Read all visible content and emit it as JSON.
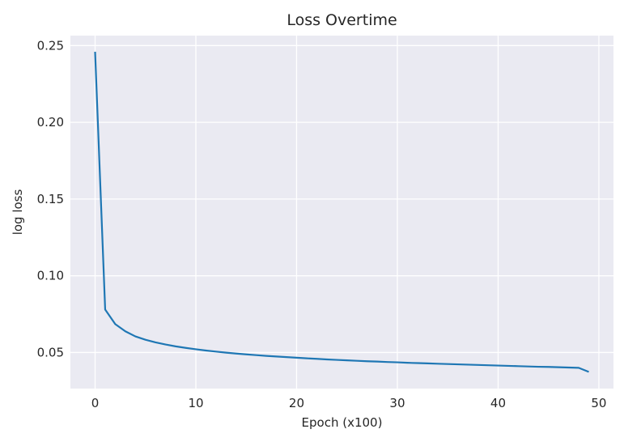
{
  "chart_data": {
    "type": "line",
    "title": "Loss Overtime",
    "xlabel": "Epoch (x100)",
    "ylabel": "log loss",
    "xlim": [
      -2.45,
      51.45
    ],
    "ylim": [
      0.0265,
      0.2565
    ],
    "xticks": [
      0,
      10,
      20,
      30,
      40,
      50
    ],
    "yticks": [
      0.05,
      0.1,
      0.15,
      0.2,
      0.25
    ],
    "xtick_labels": [
      "0",
      "10",
      "20",
      "30",
      "40",
      "50"
    ],
    "ytick_labels": [
      "0.05",
      "0.10",
      "0.15",
      "0.20",
      "0.25"
    ],
    "grid": true,
    "series": [
      {
        "color": "#1f77b4",
        "x": [
          0,
          1,
          2,
          3,
          4,
          5,
          6,
          7,
          8,
          9,
          10,
          11,
          12,
          13,
          14,
          15,
          16,
          17,
          18,
          19,
          20,
          21,
          22,
          23,
          24,
          25,
          26,
          27,
          28,
          29,
          30,
          31,
          32,
          33,
          34,
          35,
          36,
          37,
          38,
          39,
          40,
          41,
          42,
          43,
          44,
          45,
          46,
          47,
          48,
          49
        ],
        "y": [
          0.246,
          0.078,
          0.0685,
          0.0638,
          0.0605,
          0.0583,
          0.0566,
          0.0552,
          0.054,
          0.053,
          0.0521,
          0.0513,
          0.0506,
          0.0499,
          0.0493,
          0.0488,
          0.0483,
          0.0478,
          0.0474,
          0.047,
          0.0466,
          0.0462,
          0.0459,
          0.0455,
          0.0452,
          0.0449,
          0.0446,
          0.0443,
          0.0441,
          0.0438,
          0.0436,
          0.0433,
          0.0431,
          0.0429,
          0.0427,
          0.0425,
          0.0423,
          0.0421,
          0.0419,
          0.0417,
          0.0415,
          0.0413,
          0.0411,
          0.0409,
          0.0407,
          0.0406,
          0.0404,
          0.0402,
          0.04,
          0.0374
        ]
      }
    ]
  }
}
